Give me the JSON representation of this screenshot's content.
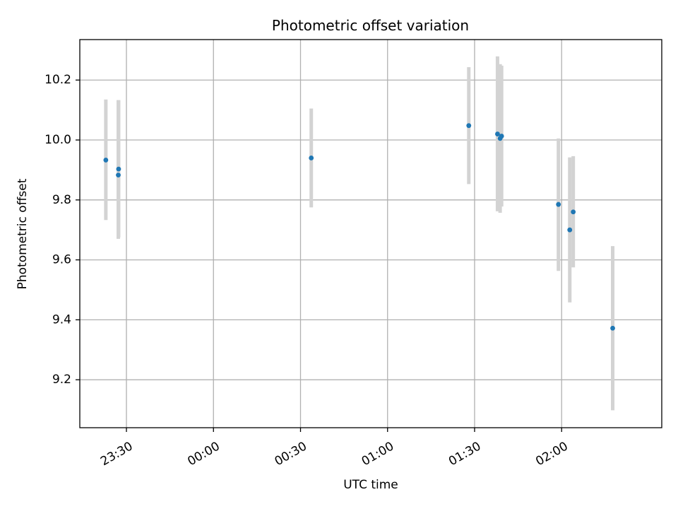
{
  "chart_data": {
    "type": "scatter",
    "title": "Photometric offset variation",
    "xlabel": "UTC time",
    "ylabel": "Photometric offset",
    "grid": true,
    "legend": "none",
    "colors": {
      "point": "#1f77b4",
      "errorbar": "#d3d3d3",
      "grid": "#b0b0b0",
      "axis": "#000000"
    },
    "x_reference": "23:00",
    "xlim_min": [
      13.93,
      214.51
    ],
    "xticks": [
      {
        "minute": 30,
        "label": "23:30"
      },
      {
        "minute": 60,
        "label": "00:00"
      },
      {
        "minute": 90,
        "label": "00:30"
      },
      {
        "minute": 120,
        "label": "01:00"
      },
      {
        "minute": 150,
        "label": "01:30"
      },
      {
        "minute": 180,
        "label": "02:00"
      }
    ],
    "ylim": [
      9.04,
      10.335
    ],
    "yticks": [
      9.2,
      9.4,
      9.6,
      9.8,
      10.0,
      10.2
    ],
    "ytick_labels": [
      "9.2",
      "9.4",
      "9.6",
      "9.8",
      "10.0",
      "10.2"
    ],
    "points": [
      {
        "minute": 22.9,
        "y": 9.933,
        "err_low": 9.733,
        "err_high": 10.135
      },
      {
        "minute": 27.3,
        "y": 9.903,
        "err_low": 9.675,
        "err_high": 10.133
      },
      {
        "minute": 27.2,
        "y": 9.883,
        "err_low": 9.67,
        "err_high": 10.133
      },
      {
        "minute": 93.7,
        "y": 9.94,
        "err_low": 9.775,
        "err_high": 10.105
      },
      {
        "minute": 148.0,
        "y": 10.048,
        "err_low": 9.853,
        "err_high": 10.243
      },
      {
        "minute": 157.9,
        "y": 10.02,
        "err_low": 9.762,
        "err_high": 10.279
      },
      {
        "minute": 158.8,
        "y": 10.005,
        "err_low": 9.757,
        "err_high": 10.253
      },
      {
        "minute": 159.3,
        "y": 10.013,
        "err_low": 9.778,
        "err_high": 10.248
      },
      {
        "minute": 178.9,
        "y": 9.785,
        "err_low": 9.563,
        "err_high": 10.005
      },
      {
        "minute": 182.8,
        "y": 9.7,
        "err_low": 9.458,
        "err_high": 9.942
      },
      {
        "minute": 184.0,
        "y": 9.76,
        "err_low": 9.575,
        "err_high": 9.946
      },
      {
        "minute": 197.6,
        "y": 9.372,
        "err_low": 9.098,
        "err_high": 9.646
      }
    ]
  }
}
